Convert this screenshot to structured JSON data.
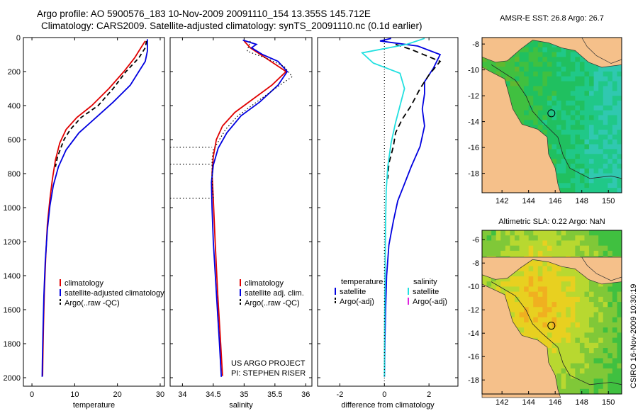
{
  "header": {
    "title_line1": "Argo profile: AO 5900576_183 10-Nov-2009 20091110_154 13.355S 145.712E",
    "title_line2": "Climatology: CARS2009. Satellite-adjusted climatology: synTS_20091110.nc (0.1d earlier)"
  },
  "side_label": "CSIRO 16-Nov-2009 10:30:19",
  "colors": {
    "climatology": "#e00000",
    "satellite": "#0000e0",
    "argo": "#000000",
    "salinity_satellite": "#22e0e0",
    "salinity_argo": "#e020e0",
    "land": "#f5c08a"
  },
  "chart_data": [
    {
      "type": "line",
      "xlabel": "temperature",
      "ylabel": "",
      "xlim": [
        -2,
        31
      ],
      "ylim": [
        0,
        2050
      ],
      "xticks": [
        0,
        10,
        20,
        30
      ],
      "yticks": [
        0,
        200,
        400,
        600,
        800,
        1000,
        1200,
        1400,
        1600,
        1800,
        2000
      ],
      "legend": [
        "climatology",
        "satellite-adjusted climatology",
        "Argo(..raw -QC)"
      ],
      "series": [
        {
          "name": "climatology",
          "color": "#e00000",
          "dash": "",
          "points": [
            [
              26.5,
              20
            ],
            [
              25.5,
              60
            ],
            [
              24,
              120
            ],
            [
              21.5,
              200
            ],
            [
              18,
              300
            ],
            [
              14,
              400
            ],
            [
              10.5,
              470
            ],
            [
              8,
              540
            ],
            [
              6.5,
              620
            ],
            [
              5.5,
              720
            ],
            [
              4.8,
              830
            ],
            [
              4.2,
              950
            ],
            [
              3.6,
              1100
            ],
            [
              3.2,
              1300
            ],
            [
              2.9,
              1500
            ],
            [
              2.7,
              1700
            ],
            [
              2.55,
              1900
            ],
            [
              2.5,
              1990
            ]
          ]
        },
        {
          "name": "satellite-adjusted climatology",
          "color": "#0000e0",
          "dash": "",
          "points": [
            [
              27,
              10
            ],
            [
              27,
              80
            ],
            [
              26.5,
              140
            ],
            [
              25,
              200
            ],
            [
              23,
              280
            ],
            [
              19,
              380
            ],
            [
              15,
              470
            ],
            [
              11,
              560
            ],
            [
              8,
              660
            ],
            [
              6.2,
              760
            ],
            [
              5,
              870
            ],
            [
              4.2,
              990
            ],
            [
              3.6,
              1130
            ],
            [
              3.1,
              1320
            ],
            [
              2.8,
              1520
            ],
            [
              2.6,
              1720
            ],
            [
              2.45,
              1900
            ],
            [
              2.4,
              1995
            ]
          ]
        },
        {
          "name": "Argo(..raw -QC)",
          "color": "#000000",
          "dash": "6,4",
          "points": [
            [
              26.8,
              20
            ],
            [
              26.5,
              60
            ],
            [
              25,
              120
            ],
            [
              22,
              200
            ],
            [
              19,
              300
            ],
            [
              15.5,
              400
            ],
            [
              11.5,
              470
            ],
            [
              9,
              540
            ],
            [
              7.5,
              600
            ],
            [
              6,
              700
            ],
            [
              5.5,
              760
            ]
          ]
        }
      ]
    },
    {
      "type": "line",
      "xlabel": "salinity",
      "ylabel": "",
      "xlim": [
        33.8,
        36.1
      ],
      "ylim": [
        0,
        2050
      ],
      "xticks": [
        34,
        34.5,
        35,
        35.5,
        36
      ],
      "legend": [
        "climatology",
        "satellite adj. clim.",
        "Argo(..raw -QC)"
      ],
      "annotation": [
        "US ARGO PROJECT",
        "PI: STEPHEN RISER"
      ],
      "series": [
        {
          "name": "climatology",
          "color": "#e00000",
          "dash": "",
          "points": [
            [
              35,
              20
            ],
            [
              35.1,
              60
            ],
            [
              35.35,
              120
            ],
            [
              35.6,
              180
            ],
            [
              35.68,
              200
            ],
            [
              35.45,
              280
            ],
            [
              35.15,
              360
            ],
            [
              34.85,
              440
            ],
            [
              34.65,
              520
            ],
            [
              34.55,
              600
            ],
            [
              34.5,
              700
            ],
            [
              34.48,
              800
            ],
            [
              34.5,
              950
            ],
            [
              34.53,
              1200
            ],
            [
              34.57,
              1500
            ],
            [
              34.62,
              1800
            ],
            [
              34.65,
              1990
            ]
          ]
        },
        {
          "name": "satellite adj. clim.",
          "color": "#0000e0",
          "dash": "",
          "points": [
            [
              34.98,
              15
            ],
            [
              35.2,
              40
            ],
            [
              35.12,
              60
            ],
            [
              35.3,
              100
            ],
            [
              35.55,
              140
            ],
            [
              35.7,
              200
            ],
            [
              35.55,
              280
            ],
            [
              35.25,
              380
            ],
            [
              34.95,
              460
            ],
            [
              34.72,
              560
            ],
            [
              34.58,
              650
            ],
            [
              34.5,
              750
            ],
            [
              34.47,
              850
            ],
            [
              34.48,
              1000
            ],
            [
              34.5,
              1200
            ],
            [
              34.55,
              1500
            ],
            [
              34.6,
              1800
            ],
            [
              34.63,
              1995
            ]
          ]
        },
        {
          "name": "Argo(..raw -QC)",
          "color": "#000000",
          "dash": "1.5,3",
          "points": [
            [
              35.1,
              20
            ],
            [
              35.05,
              80
            ],
            [
              35.35,
              120
            ],
            [
              35.65,
              170
            ],
            [
              35.78,
              230
            ],
            [
              35.5,
              300
            ],
            [
              35.2,
              380
            ],
            [
              34.9,
              460
            ],
            [
              34.7,
              540
            ],
            [
              34.6,
              600
            ],
            [
              34.5,
              660
            ],
            [
              34.48,
              720
            ],
            [
              34.48,
              820
            ],
            [
              34.5,
              950
            ]
          ]
        },
        {
          "name": "",
          "color": "#000000",
          "dash": "1.5,3",
          "points": [
            [
              33.8,
              645
            ],
            [
              34.48,
              645
            ]
          ]
        },
        {
          "name": "",
          "color": "#000000",
          "dash": "1.5,3",
          "points": [
            [
              33.8,
              745
            ],
            [
              34.48,
              745
            ]
          ]
        },
        {
          "name": "",
          "color": "#000000",
          "dash": "1.5,3",
          "points": [
            [
              33.8,
              945
            ],
            [
              34.48,
              945
            ]
          ]
        }
      ]
    },
    {
      "type": "line",
      "xlabel": "difference from climatology",
      "ylabel": "",
      "xlim": [
        -3,
        3.3
      ],
      "ylim": [
        0,
        2050
      ],
      "xticks": [
        -2,
        0,
        2
      ],
      "legend_headers": [
        "temperature",
        "salinity"
      ],
      "legend": [
        "satellite",
        "Argo(-adj)",
        "satellite",
        "Argo(-adj)"
      ],
      "series": [
        {
          "name": "satellite",
          "color": "#0000e0",
          "dash": "",
          "points": [
            [
              0.3,
              5
            ],
            [
              -0.2,
              20
            ],
            [
              1.5,
              50
            ],
            [
              2.5,
              100
            ],
            [
              2.2,
              180
            ],
            [
              1.8,
              260
            ],
            [
              1.8,
              330
            ],
            [
              1.7,
              420
            ],
            [
              1.8,
              520
            ],
            [
              1.6,
              640
            ],
            [
              1.2,
              760
            ],
            [
              0.9,
              860
            ],
            [
              0.6,
              960
            ],
            [
              0.4,
              1080
            ],
            [
              0.2,
              1220
            ],
            [
              0.1,
              1400
            ],
            [
              0.05,
              1600
            ],
            [
              0.02,
              1800
            ],
            [
              0,
              1995
            ]
          ]
        },
        {
          "name": "Argo(-adj)",
          "color": "#000000",
          "dash": "8,5",
          "points": [
            [
              0.5,
              40
            ],
            [
              1.2,
              70
            ],
            [
              2.5,
              140
            ],
            [
              2,
              220
            ],
            [
              1.6,
              300
            ],
            [
              1.2,
              400
            ],
            [
              0.8,
              480
            ],
            [
              0.5,
              560
            ],
            [
              0.4,
              640
            ],
            [
              0.2,
              740
            ],
            [
              0.15,
              830
            ]
          ]
        },
        {
          "name": "satellite",
          "color": "#22e0e0",
          "dash": "",
          "points": [
            [
              1.8,
              5
            ],
            [
              1,
              40
            ],
            [
              -1,
              90
            ],
            [
              -0.5,
              150
            ],
            [
              0.7,
              210
            ],
            [
              0.9,
              300
            ],
            [
              0.7,
              400
            ],
            [
              0.5,
              500
            ],
            [
              0.3,
              620
            ],
            [
              0.15,
              760
            ],
            [
              0.08,
              900
            ],
            [
              0.05,
              1100
            ],
            [
              0.03,
              1400
            ],
            [
              0.01,
              1700
            ],
            [
              0,
              1995
            ]
          ]
        },
        {
          "name": "",
          "color": "#000000",
          "dash": "1,3",
          "points": [
            [
              0,
              0
            ],
            [
              0,
              2050
            ]
          ]
        }
      ]
    },
    {
      "type": "heatmap",
      "title": "AMSR-E SST: 26.8 Argo: 26.7",
      "xticks": [
        142,
        144,
        146,
        148,
        150
      ],
      "yticks": [
        -8,
        -10,
        -12,
        -14,
        -16,
        -18
      ],
      "xlim": [
        140.5,
        151
      ],
      "ylim": [
        -19.5,
        -7.5
      ],
      "marker": [
        145.712,
        -13.355
      ],
      "palette": [
        "#60b830",
        "#40c040",
        "#20c060",
        "#20c888",
        "#30c8b0"
      ]
    },
    {
      "type": "heatmap",
      "title": "Altimetric SLA: 0.22 Argo: NaN",
      "xticks": [
        142,
        144,
        146,
        148,
        150
      ],
      "yticks": [
        -6,
        -8,
        -10,
        -12,
        -14,
        -16,
        -18
      ],
      "xlim": [
        140.5,
        151
      ],
      "ylim": [
        -19.2,
        -5.2
      ],
      "marker": [
        145.712,
        -13.355
      ],
      "palette": [
        "#f0b020",
        "#e8d020",
        "#b8d830",
        "#80c838",
        "#40c040"
      ]
    }
  ]
}
